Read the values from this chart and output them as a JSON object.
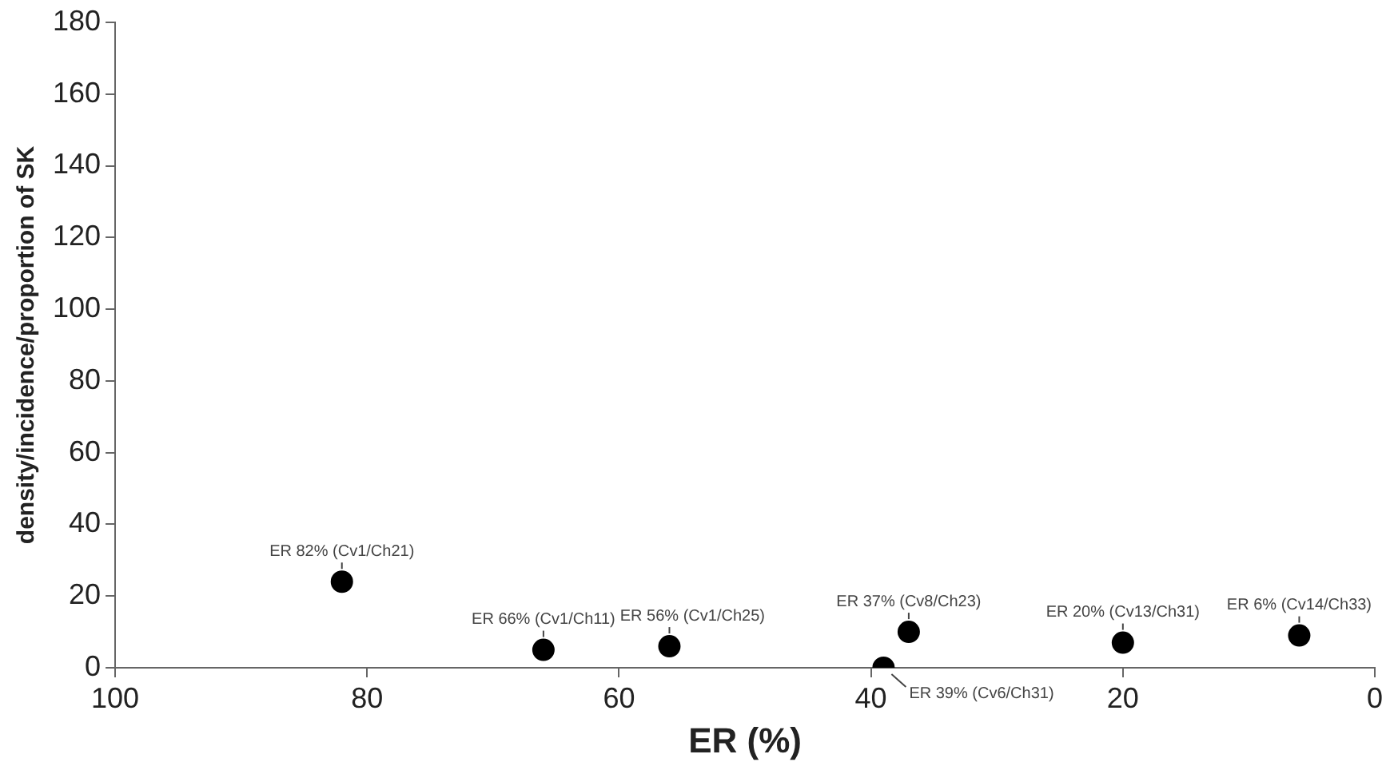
{
  "chart_data": {
    "type": "scatter",
    "xlabel": "ER (%)",
    "ylabel": "density/incidence/proportion of SK",
    "x": [
      82,
      66,
      56,
      39,
      37,
      20,
      6
    ],
    "series": [
      {
        "color": "#000000",
        "values": [
          24,
          5,
          6,
          0,
          10,
          7,
          9
        ]
      }
    ],
    "xlim": [
      100,
      0
    ],
    "xticks": [
      100,
      80,
      60,
      40,
      20,
      0
    ],
    "ylim": [
      0,
      180
    ],
    "yticks": [
      0,
      20,
      40,
      60,
      80,
      100,
      120,
      140,
      160,
      180
    ],
    "grid": false,
    "legend": false,
    "marker": "circle",
    "annotations": [
      {
        "text": "ER 82% (Cv1/Ch21)",
        "x": 82,
        "y": 24
      },
      {
        "text": "ER 66% (Cv1/Ch11)",
        "x": 66,
        "y": 5
      },
      {
        "text": "ER 56% (Cv1/Ch25)",
        "x": 56,
        "y": 6
      },
      {
        "text": "ER 39% (Cv6/Ch31)",
        "x": 39,
        "y": 0
      },
      {
        "text": "ER 37% (Cv8/Ch23)",
        "x": 37,
        "y": 10
      },
      {
        "text": "ER 20% (Cv13/Ch31)",
        "x": 20,
        "y": 7
      },
      {
        "text": "ER 6% (Cv14/Ch33)",
        "x": 6,
        "y": 9
      }
    ]
  }
}
